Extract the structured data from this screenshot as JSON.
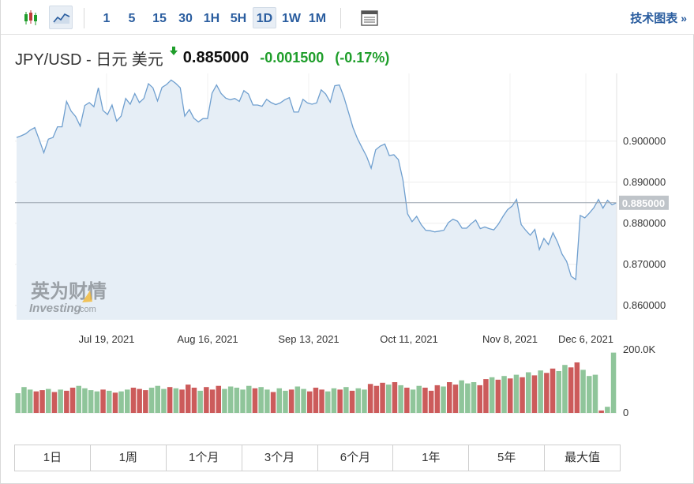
{
  "toolbar": {
    "icons": [
      "candlestick-chart-icon",
      "area-chart-icon",
      "calendar-layout-icon"
    ],
    "time_ranges": [
      "1",
      "5",
      "15",
      "30",
      "1H",
      "5H",
      "1D",
      "1W",
      "1M"
    ],
    "active_range": "1D",
    "technical_link": "技术图表",
    "technical_arrow": "»"
  },
  "quote": {
    "name": "JPY/USD - 日元 美元",
    "direction_icon": "down-arrow-icon",
    "price": "0.885000",
    "change": "-0.001500",
    "change_pct": "(-0.17%)",
    "change_color": "#1f9e2b"
  },
  "watermark": {
    "cn": "英为财情",
    "en": "Investing",
    "suffix": ".com"
  },
  "periods": [
    "1日",
    "1周",
    "1个月",
    "3个月",
    "6个月",
    "1年",
    "5年",
    "最大值"
  ],
  "chart_data": {
    "type": "area",
    "x_ticks": [
      "Jul 19, 2021",
      "Aug 16, 2021",
      "Sep 13, 2021",
      "Oct 11, 2021",
      "Nov 8, 2021",
      "Dec 6, 2021"
    ],
    "y_ticks": [
      "0.900000",
      "0.890000",
      "0.880000",
      "0.870000",
      "0.860000"
    ],
    "ylim": [
      0.8565,
      0.9165
    ],
    "current_value": 0.885,
    "current_label": "0.885000",
    "series_color": "#6f9fcf",
    "fill_color": "#e6eef6",
    "values": [
      0.9009,
      0.9013,
      0.9018,
      0.9027,
      0.9033,
      0.9003,
      0.8972,
      0.9005,
      0.9009,
      0.9035,
      0.9035,
      0.9097,
      0.9073,
      0.906,
      0.9037,
      0.9087,
      0.9094,
      0.9084,
      0.913,
      0.9075,
      0.9065,
      0.9088,
      0.9049,
      0.9061,
      0.9104,
      0.909,
      0.9116,
      0.9094,
      0.9104,
      0.914,
      0.913,
      0.9098,
      0.9131,
      0.9138,
      0.9149,
      0.9141,
      0.913,
      0.9061,
      0.9077,
      0.9056,
      0.9047,
      0.9055,
      0.9055,
      0.9117,
      0.9137,
      0.9116,
      0.9105,
      0.9101,
      0.9104,
      0.9097,
      0.9123,
      0.9115,
      0.9088,
      0.9088,
      0.9085,
      0.9102,
      0.9094,
      0.9089,
      0.9093,
      0.9101,
      0.9106,
      0.9071,
      0.9071,
      0.9102,
      0.9093,
      0.909,
      0.9093,
      0.9125,
      0.9115,
      0.9095,
      0.9135,
      0.9137,
      0.9108,
      0.9071,
      0.9033,
      0.9006,
      0.8984,
      0.8963,
      0.8934,
      0.8979,
      0.8988,
      0.8993,
      0.8965,
      0.8967,
      0.8955,
      0.8905,
      0.8823,
      0.8804,
      0.8817,
      0.8797,
      0.8783,
      0.8782,
      0.8779,
      0.8781,
      0.8783,
      0.8802,
      0.881,
      0.8805,
      0.8788,
      0.8788,
      0.8799,
      0.8808,
      0.8787,
      0.8791,
      0.8787,
      0.8784,
      0.8798,
      0.8817,
      0.8833,
      0.8842,
      0.8858,
      0.8797,
      0.8783,
      0.8771,
      0.8785,
      0.8736,
      0.8763,
      0.8748,
      0.8777,
      0.8754,
      0.8725,
      0.8707,
      0.8671,
      0.8663,
      0.8819,
      0.8813,
      0.8825,
      0.8838,
      0.8858,
      0.8837,
      0.8856,
      0.8845,
      0.885
    ],
    "volume": {
      "max_label": "200.0K",
      "zero_label": "0",
      "up_color": "#8fc59a",
      "down_color": "#cc5b5b",
      "bars": [
        [
          0.32,
          1
        ],
        [
          0.42,
          1
        ],
        [
          0.38,
          1
        ],
        [
          0.35,
          0
        ],
        [
          0.37,
          0
        ],
        [
          0.39,
          1
        ],
        [
          0.34,
          0
        ],
        [
          0.38,
          1
        ],
        [
          0.36,
          0
        ],
        [
          0.41,
          0
        ],
        [
          0.44,
          1
        ],
        [
          0.4,
          1
        ],
        [
          0.37,
          1
        ],
        [
          0.35,
          1
        ],
        [
          0.38,
          0
        ],
        [
          0.36,
          1
        ],
        [
          0.33,
          0
        ],
        [
          0.35,
          1
        ],
        [
          0.38,
          1
        ],
        [
          0.41,
          0
        ],
        [
          0.39,
          0
        ],
        [
          0.37,
          0
        ],
        [
          0.41,
          1
        ],
        [
          0.44,
          1
        ],
        [
          0.39,
          1
        ],
        [
          0.42,
          0
        ],
        [
          0.4,
          1
        ],
        [
          0.38,
          0
        ],
        [
          0.46,
          0
        ],
        [
          0.41,
          0
        ],
        [
          0.36,
          1
        ],
        [
          0.42,
          0
        ],
        [
          0.38,
          0
        ],
        [
          0.44,
          0
        ],
        [
          0.39,
          1
        ],
        [
          0.43,
          1
        ],
        [
          0.41,
          1
        ],
        [
          0.38,
          1
        ],
        [
          0.44,
          1
        ],
        [
          0.4,
          0
        ],
        [
          0.42,
          1
        ],
        [
          0.38,
          1
        ],
        [
          0.34,
          0
        ],
        [
          0.4,
          1
        ],
        [
          0.36,
          1
        ],
        [
          0.38,
          0
        ],
        [
          0.43,
          1
        ],
        [
          0.39,
          1
        ],
        [
          0.35,
          0
        ],
        [
          0.41,
          0
        ],
        [
          0.38,
          0
        ],
        [
          0.35,
          1
        ],
        [
          0.4,
          1
        ],
        [
          0.38,
          0
        ],
        [
          0.42,
          1
        ],
        [
          0.36,
          0
        ],
        [
          0.4,
          1
        ],
        [
          0.38,
          1
        ],
        [
          0.47,
          0
        ],
        [
          0.44,
          0
        ],
        [
          0.49,
          0
        ],
        [
          0.46,
          1
        ],
        [
          0.5,
          0
        ],
        [
          0.45,
          1
        ],
        [
          0.41,
          0
        ],
        [
          0.38,
          1
        ],
        [
          0.44,
          1
        ],
        [
          0.41,
          0
        ],
        [
          0.36,
          0
        ],
        [
          0.45,
          0
        ],
        [
          0.43,
          1
        ],
        [
          0.5,
          0
        ],
        [
          0.46,
          0
        ],
        [
          0.53,
          1
        ],
        [
          0.48,
          1
        ],
        [
          0.5,
          1
        ],
        [
          0.45,
          0
        ],
        [
          0.55,
          0
        ],
        [
          0.58,
          1
        ],
        [
          0.54,
          0
        ],
        [
          0.6,
          1
        ],
        [
          0.56,
          0
        ],
        [
          0.62,
          1
        ],
        [
          0.58,
          0
        ],
        [
          0.66,
          1
        ],
        [
          0.61,
          0
        ],
        [
          0.69,
          1
        ],
        [
          0.65,
          0
        ],
        [
          0.72,
          0
        ],
        [
          0.68,
          1
        ],
        [
          0.78,
          1
        ],
        [
          0.74,
          0
        ],
        [
          0.82,
          0
        ],
        [
          0.7,
          1
        ],
        [
          0.6,
          1
        ],
        [
          0.62,
          1
        ],
        [
          0.04,
          0
        ],
        [
          0.1,
          1
        ],
        [
          0.98,
          1
        ]
      ]
    }
  }
}
